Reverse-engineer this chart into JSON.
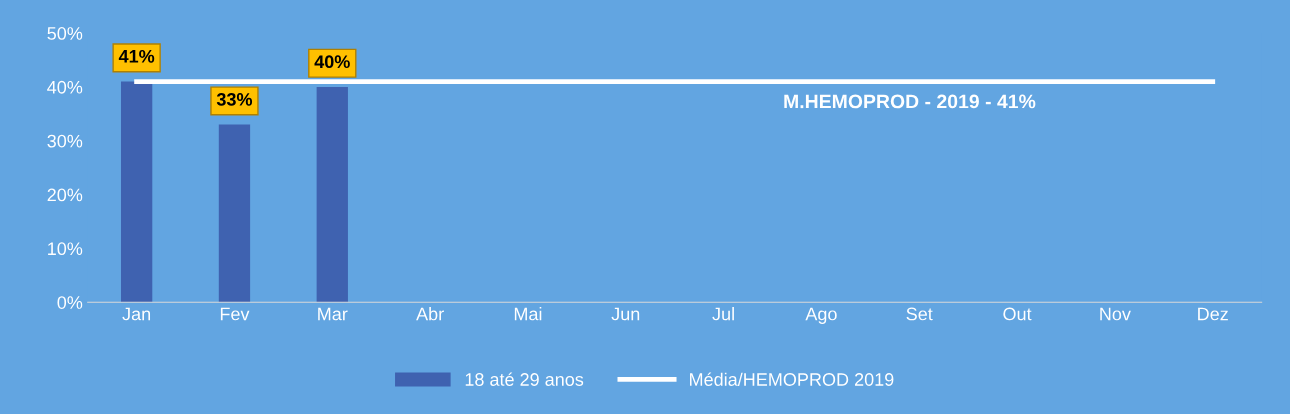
{
  "chart_data": {
    "type": "bar",
    "categories": [
      "Jan",
      "Fev",
      "Mar",
      "Abr",
      "Mai",
      "Jun",
      "Jul",
      "Ago",
      "Set",
      "Out",
      "Nov",
      "Dez"
    ],
    "series": [
      {
        "name": "18 até 29 anos",
        "color": "#3f62b0",
        "values": [
          41,
          33,
          40,
          null,
          null,
          null,
          null,
          null,
          null,
          null,
          null,
          null
        ],
        "value_labels": [
          "41%",
          "33%",
          "40%",
          null,
          null,
          null,
          null,
          null,
          null,
          null,
          null,
          null
        ]
      },
      {
        "name": "Média/HEMOPROD 2019",
        "type": "line",
        "color": "#ffffff",
        "values": [
          41,
          41,
          41,
          41,
          41,
          41,
          41,
          41,
          41,
          41,
          41,
          41
        ]
      }
    ],
    "ylim": [
      0,
      50
    ],
    "yticks": [
      {
        "value": 0,
        "label": "0%"
      },
      {
        "value": 10,
        "label": "10%"
      },
      {
        "value": 20,
        "label": "20%"
      },
      {
        "value": 30,
        "label": "30%"
      },
      {
        "value": 40,
        "label": "40%"
      },
      {
        "value": 50,
        "label": "50%"
      }
    ],
    "annotations": [
      "M.HEMOPROD - 2019 - 41%"
    ],
    "grid": false,
    "legend": "bottom",
    "marker": "none"
  }
}
